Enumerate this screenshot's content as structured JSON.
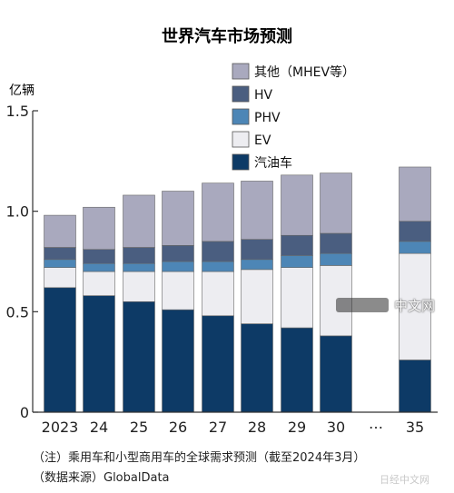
{
  "chart_data": {
    "type": "bar",
    "stacked": true,
    "title": "世界汽车市场预测",
    "ylabel": "亿辆",
    "ylim": [
      0,
      1.5
    ],
    "yticks": [
      "0",
      "0.5",
      "1.0",
      "1.5"
    ],
    "grid": false,
    "legend_position": "top-right",
    "categories": [
      "2023",
      "24",
      "25",
      "26",
      "27",
      "28",
      "29",
      "30",
      "35"
    ],
    "gap_marker": "…",
    "series": [
      {
        "name": "汽油车",
        "color": "#0d3a66",
        "values": [
          0.62,
          0.58,
          0.55,
          0.51,
          0.48,
          0.44,
          0.42,
          0.38,
          0.26
        ]
      },
      {
        "name": "EV",
        "color": "#ededf1",
        "values": [
          0.1,
          0.12,
          0.15,
          0.19,
          0.22,
          0.27,
          0.3,
          0.35,
          0.53
        ]
      },
      {
        "name": "PHV",
        "color": "#4d86b6",
        "values": [
          0.04,
          0.04,
          0.04,
          0.05,
          0.05,
          0.05,
          0.06,
          0.06,
          0.06
        ]
      },
      {
        "name": "HV",
        "color": "#4a5e80",
        "values": [
          0.06,
          0.07,
          0.08,
          0.08,
          0.1,
          0.1,
          0.1,
          0.1,
          0.1
        ]
      },
      {
        "name": "其他（MHEV等）",
        "color": "#a9a9be",
        "values": [
          0.16,
          0.21,
          0.26,
          0.27,
          0.29,
          0.29,
          0.3,
          0.3,
          0.27
        ]
      }
    ]
  },
  "notes": {
    "line1": "（注）乘用车和小型商用车的全球需求预测（截至2024年3月）",
    "line2": "（数据来源）GlobalData"
  },
  "watermark": {
    "center": "中文网",
    "bottom": "日经中文网"
  }
}
